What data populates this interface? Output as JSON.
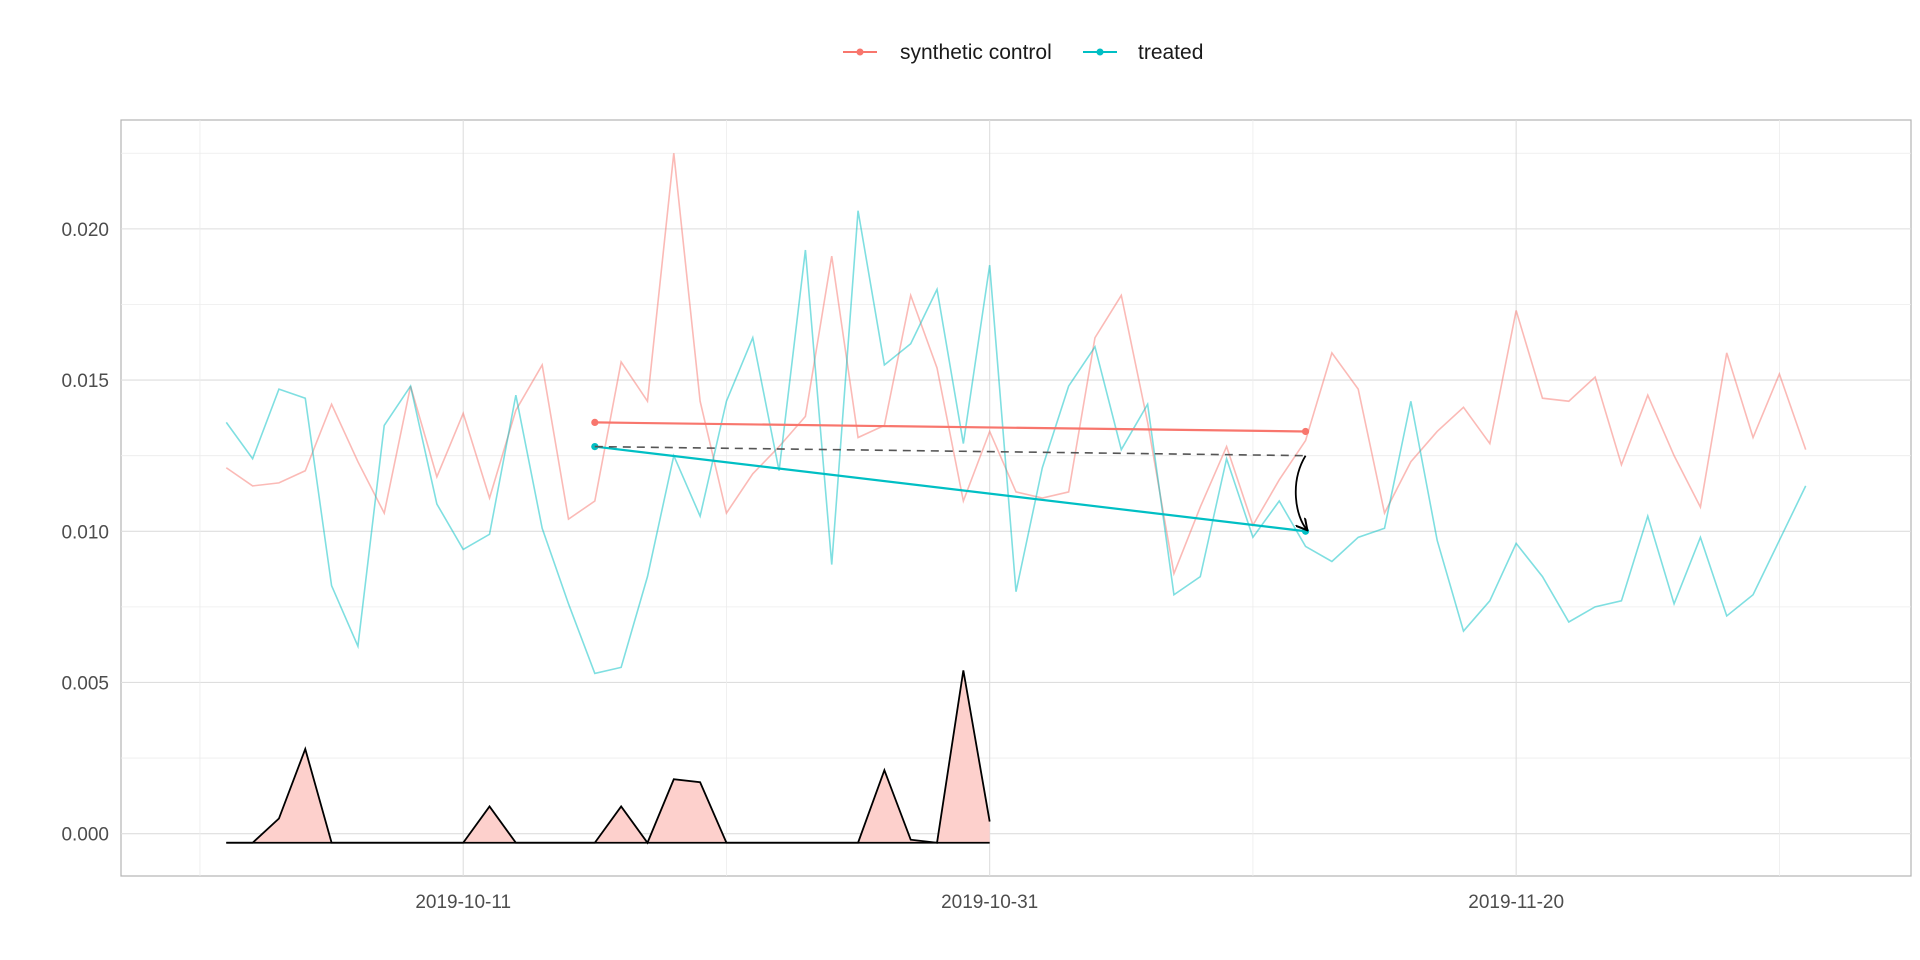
{
  "chart_data": {
    "type": "line",
    "title": "",
    "xlabel": "",
    "ylabel": "",
    "legend": {
      "position": "top",
      "entries": [
        {
          "label": "synthetic control",
          "color": "#F8766D"
        },
        {
          "label": "treated",
          "color": "#00BFC4"
        }
      ]
    },
    "x_ticks": [
      {
        "date": "2019-10-11",
        "label": "2019-10-11"
      },
      {
        "date": "2019-10-31",
        "label": "2019-10-31"
      },
      {
        "date": "2019-11-20",
        "label": "2019-11-20"
      }
    ],
    "y_ticks": [
      {
        "value": 0.0,
        "label": "0.000"
      },
      {
        "value": 0.005,
        "label": "0.005"
      },
      {
        "value": 0.01,
        "label": "0.010"
      },
      {
        "value": 0.015,
        "label": "0.015"
      },
      {
        "value": 0.02,
        "label": "0.020"
      }
    ],
    "x_range": [
      "2019-09-28",
      "2019-12-05"
    ],
    "ylim": [
      -0.0014,
      0.0236
    ],
    "grid": true,
    "series": [
      {
        "name": "synthetic control",
        "color": "#F8766D",
        "start_date": "2019-10-02",
        "values": [
          0.0121,
          0.0115,
          0.0116,
          0.012,
          0.0142,
          0.0123,
          0.0106,
          0.0148,
          0.0118,
          0.0139,
          0.0111,
          0.014,
          0.0155,
          0.0104,
          0.011,
          0.0156,
          0.0143,
          0.0225,
          0.0143,
          0.0106,
          0.0119,
          0.0128,
          0.0138,
          0.0191,
          0.0131,
          0.0135,
          0.0178,
          0.0154,
          0.011,
          0.0133,
          0.0113,
          0.0111,
          0.0113,
          0.0164,
          0.0178,
          0.0136,
          0.0086,
          0.0108,
          0.0128,
          0.0102,
          0.0117,
          0.013,
          0.0159,
          0.0147,
          0.0106,
          0.0123,
          0.0133,
          0.0141,
          0.0129,
          0.0173,
          0.0144,
          0.0143,
          0.0151,
          0.0122,
          0.0145,
          0.0125,
          0.0108,
          0.0159,
          0.0131,
          0.0152,
          0.0127
        ]
      },
      {
        "name": "treated",
        "color": "#00BFC4",
        "start_date": "2019-10-02",
        "values": [
          0.0136,
          0.0124,
          0.0147,
          0.0144,
          0.0082,
          0.0062,
          0.0135,
          0.0148,
          0.0109,
          0.0094,
          0.0099,
          0.0145,
          0.0101,
          0.0076,
          0.0053,
          0.0055,
          0.0085,
          0.0125,
          0.0105,
          0.0143,
          0.0164,
          0.012,
          0.0193,
          0.0089,
          0.0206,
          0.0155,
          0.0162,
          0.018,
          0.0129,
          0.0188,
          0.008,
          0.0121,
          0.0148,
          0.0161,
          0.0127,
          0.0142,
          0.0079,
          0.0085,
          0.0124,
          0.0098,
          0.011,
          0.0095,
          0.009,
          0.0098,
          0.0101,
          0.0143,
          0.0097,
          0.0067,
          0.0077,
          0.0096,
          0.0085,
          0.007,
          0.0075,
          0.0077,
          0.0105,
          0.0076,
          0.0098,
          0.0072,
          0.0079,
          0.0097,
          0.0115
        ]
      }
    ],
    "overlay_lines": [
      {
        "series": "synthetic control",
        "color": "#F8766D",
        "from": {
          "date": "2019-10-16",
          "value": 0.0136
        },
        "to": {
          "date": "2019-11-12",
          "value": 0.0133
        }
      },
      {
        "series": "treated",
        "color": "#00BFC4",
        "from": {
          "date": "2019-10-16",
          "value": 0.0128
        },
        "to": {
          "date": "2019-11-12",
          "value": 0.01
        }
      },
      {
        "series": "counterfactual",
        "color": "#555555",
        "dashed": true,
        "from": {
          "date": "2019-10-16",
          "value": 0.0128
        },
        "to": {
          "date": "2019-11-12",
          "value": 0.0125
        }
      }
    ],
    "effect_arrow": {
      "date": "2019-11-12",
      "from_value": 0.0125,
      "to_value": 0.01
    },
    "weights_area": {
      "fill": "#FDD0CC",
      "stroke": "#000000",
      "start_date": "2019-10-02",
      "baseline": -0.0003,
      "values": [
        -0.0003,
        -0.0003,
        0.0005,
        0.0028,
        -0.0003,
        -0.0003,
        -0.0003,
        -0.0003,
        -0.0003,
        -0.0003,
        0.0009,
        -0.0003,
        -0.0003,
        -0.0003,
        -0.0003,
        0.0009,
        -0.0003,
        0.0018,
        0.0017,
        -0.0003,
        -0.0003,
        -0.0003,
        -0.0003,
        -0.0003,
        -0.0003,
        0.0021,
        -0.0002,
        -0.0003,
        0.0054,
        0.0004
      ]
    }
  }
}
